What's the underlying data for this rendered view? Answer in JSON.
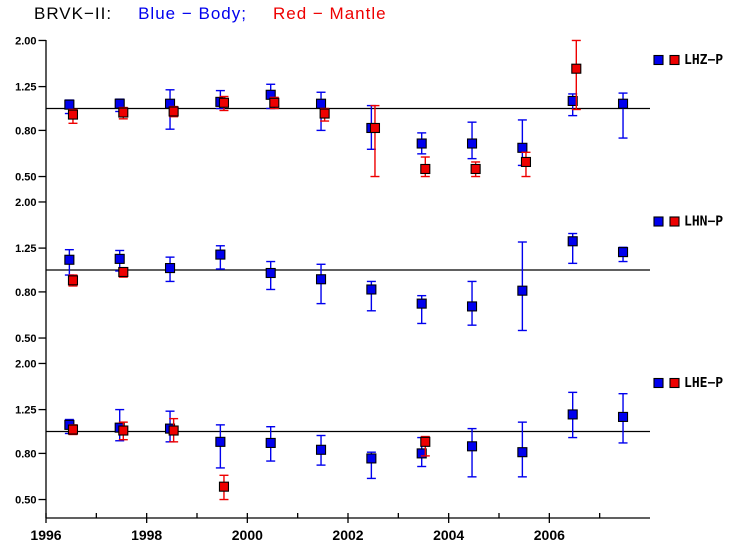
{
  "title": {
    "station": "BRVK−II:",
    "blue": "Blue − Body;",
    "red": "Red − Mantle"
  },
  "colors": {
    "body": "#0000ee",
    "mantle": "#ee0000",
    "axis": "#000000",
    "background": "#ffffff"
  },
  "chart_data": {
    "type": "scatter",
    "title": "BRVK−II:  Blue − Body;  Red − Mantle",
    "grid": false,
    "legend_position": "right-of-each-panel",
    "x": {
      "label": "",
      "min": 1996,
      "max": 2008,
      "minor_tick_years": [
        1996,
        1997,
        1998,
        1999,
        2000,
        2001,
        2002,
        2003,
        2004,
        2005,
        2006,
        2007
      ],
      "labeled_tick_years": [
        1996,
        1998,
        2000,
        2002,
        2004,
        2006
      ],
      "labeled_ticks": [
        "1996",
        "1998",
        "2000",
        "2002",
        "2004",
        "2006"
      ]
    },
    "y": {
      "label": "",
      "scale": "log",
      "min": 0.5,
      "max": 2.0,
      "tick_values": [
        2.0,
        1.25,
        0.8,
        0.5
      ],
      "tick_labels": [
        "2.00",
        "1.25",
        "0.80",
        "0.50"
      ],
      "reference_line": 1.0
    },
    "point_format": [
      "year",
      "value",
      "err_lo",
      "err_hi"
    ],
    "panels": [
      {
        "name": "LHZ−P",
        "series": [
          {
            "name": "Body",
            "color_key": "body",
            "points": [
              [
                1996.5,
                1.04,
                0.95,
                1.09
              ],
              [
                1997.5,
                1.05,
                0.97,
                1.1
              ],
              [
                1998.5,
                1.05,
                0.81,
                1.21
              ],
              [
                1999.5,
                1.07,
                1.0,
                1.2
              ],
              [
                2000.5,
                1.15,
                1.0,
                1.28
              ],
              [
                2001.5,
                1.05,
                0.8,
                1.18
              ],
              [
                2002.5,
                0.82,
                0.66,
                1.03
              ],
              [
                2003.5,
                0.7,
                0.63,
                0.78
              ],
              [
                2004.5,
                0.7,
                0.6,
                0.87
              ],
              [
                2005.5,
                0.67,
                0.56,
                0.89
              ],
              [
                2006.5,
                1.08,
                0.93,
                1.16
              ],
              [
                2007.5,
                1.05,
                0.74,
                1.17
              ]
            ]
          },
          {
            "name": "Mantle",
            "color_key": "mantle",
            "points": [
              [
                1996.5,
                0.94,
                0.86,
                0.99
              ],
              [
                1997.5,
                0.96,
                0.9,
                1.01
              ],
              [
                1998.5,
                0.97,
                0.92,
                1.02
              ],
              [
                1999.5,
                1.06,
                0.98,
                1.13
              ],
              [
                2000.5,
                1.06,
                1.0,
                1.12
              ],
              [
                2001.5,
                0.95,
                0.88,
                1.0
              ],
              [
                2002.5,
                0.82,
                0.5,
                1.03
              ],
              [
                2003.5,
                0.54,
                0.5,
                0.61
              ],
              [
                2004.5,
                0.54,
                0.5,
                0.58
              ],
              [
                2005.5,
                0.58,
                0.5,
                0.64
              ],
              [
                2006.5,
                1.5,
                0.99,
                2.0
              ]
            ]
          }
        ]
      },
      {
        "name": "LHN−P",
        "series": [
          {
            "name": "Body",
            "color_key": "body",
            "points": [
              [
                1996.5,
                1.11,
                0.95,
                1.23
              ],
              [
                1997.5,
                1.12,
                0.99,
                1.22
              ],
              [
                1998.5,
                1.02,
                0.89,
                1.14
              ],
              [
                1999.5,
                1.17,
                1.01,
                1.28
              ],
              [
                2000.5,
                0.97,
                0.82,
                1.09
              ],
              [
                2001.5,
                0.91,
                0.71,
                1.06
              ],
              [
                2002.5,
                0.82,
                0.66,
                0.89
              ],
              [
                2003.5,
                0.71,
                0.58,
                0.77
              ],
              [
                2004.5,
                0.69,
                0.57,
                0.89
              ],
              [
                2005.5,
                0.81,
                0.54,
                1.33
              ],
              [
                2006.5,
                1.34,
                1.07,
                1.45
              ],
              [
                2007.5,
                1.2,
                1.09,
                1.26
              ]
            ]
          },
          {
            "name": "Mantle",
            "color_key": "mantle",
            "points": [
              [
                1996.5,
                0.9,
                0.85,
                0.95
              ],
              [
                1997.5,
                0.98,
                0.93,
                1.02
              ]
            ]
          }
        ]
      },
      {
        "name": "LHE−P",
        "series": [
          {
            "name": "Body",
            "color_key": "body",
            "points": [
              [
                1996.5,
                1.07,
                0.98,
                1.13
              ],
              [
                1997.5,
                1.04,
                0.91,
                1.25
              ],
              [
                1998.5,
                1.03,
                0.9,
                1.23
              ],
              [
                1999.5,
                0.9,
                0.69,
                1.07
              ],
              [
                2000.5,
                0.89,
                0.74,
                1.05
              ],
              [
                2001.5,
                0.83,
                0.71,
                0.96
              ],
              [
                2002.5,
                0.76,
                0.62,
                0.81
              ],
              [
                2003.5,
                0.8,
                0.7,
                0.94
              ],
              [
                2004.5,
                0.86,
                0.63,
                1.03
              ],
              [
                2005.5,
                0.81,
                0.63,
                1.1
              ],
              [
                2006.5,
                1.19,
                0.94,
                1.49
              ],
              [
                2007.5,
                1.16,
                0.89,
                1.47
              ]
            ]
          },
          {
            "name": "Mantle",
            "color_key": "mantle",
            "points": [
              [
                1996.5,
                1.02,
                0.97,
                1.07
              ],
              [
                1997.5,
                1.01,
                0.92,
                1.1
              ],
              [
                1998.5,
                1.01,
                0.9,
                1.14
              ],
              [
                1999.5,
                0.57,
                0.5,
                0.64
              ],
              [
                2003.5,
                0.9,
                0.78,
                0.95
              ]
            ]
          }
        ]
      }
    ]
  }
}
